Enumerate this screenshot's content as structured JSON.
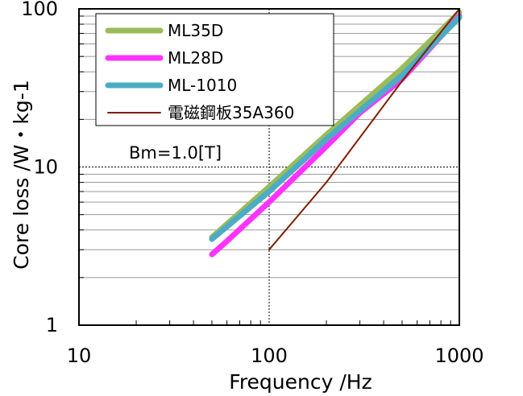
{
  "chart_data": {
    "type": "line",
    "xscale": "log",
    "yscale": "log",
    "xlim": [
      10,
      1000
    ],
    "ylim": [
      1,
      100
    ],
    "xlabel": "Frequency /Hz",
    "ylabel": "Core loss /W・kg-1",
    "x_ticks": [
      "10",
      "100",
      "1000"
    ],
    "y_ticks": [
      "1",
      "10",
      "100"
    ],
    "grid": true,
    "legend_position": "top-left",
    "annotation": "Bm=1.0[T]",
    "series": [
      {
        "name": "ML35D",
        "color": "#9bbb59",
        "line": "thick",
        "points": [
          [
            50,
            3.6
          ],
          [
            100,
            7.5
          ],
          [
            200,
            16
          ],
          [
            500,
            42
          ],
          [
            1000,
            95
          ]
        ]
      },
      {
        "name": "ML28D",
        "color": "#ff33ff",
        "line": "thick",
        "points": [
          [
            50,
            2.8
          ],
          [
            60,
            3.4
          ],
          [
            100,
            6.0
          ],
          [
            200,
            13.5
          ],
          [
            300,
            22
          ],
          [
            500,
            36
          ],
          [
            1000,
            90
          ]
        ]
      },
      {
        "name": "ML-1010",
        "color": "#4bacc6",
        "line": "thick",
        "points": [
          [
            50,
            3.5
          ],
          [
            100,
            7.0
          ],
          [
            200,
            15
          ],
          [
            500,
            38
          ],
          [
            1000,
            88
          ]
        ]
      },
      {
        "name": "電磁鋼板35A360",
        "color": "#7f1f00",
        "line": "thin",
        "points": [
          [
            100,
            3.0
          ],
          [
            200,
            8.0
          ],
          [
            500,
            35
          ],
          [
            1000,
            100
          ]
        ]
      }
    ]
  }
}
